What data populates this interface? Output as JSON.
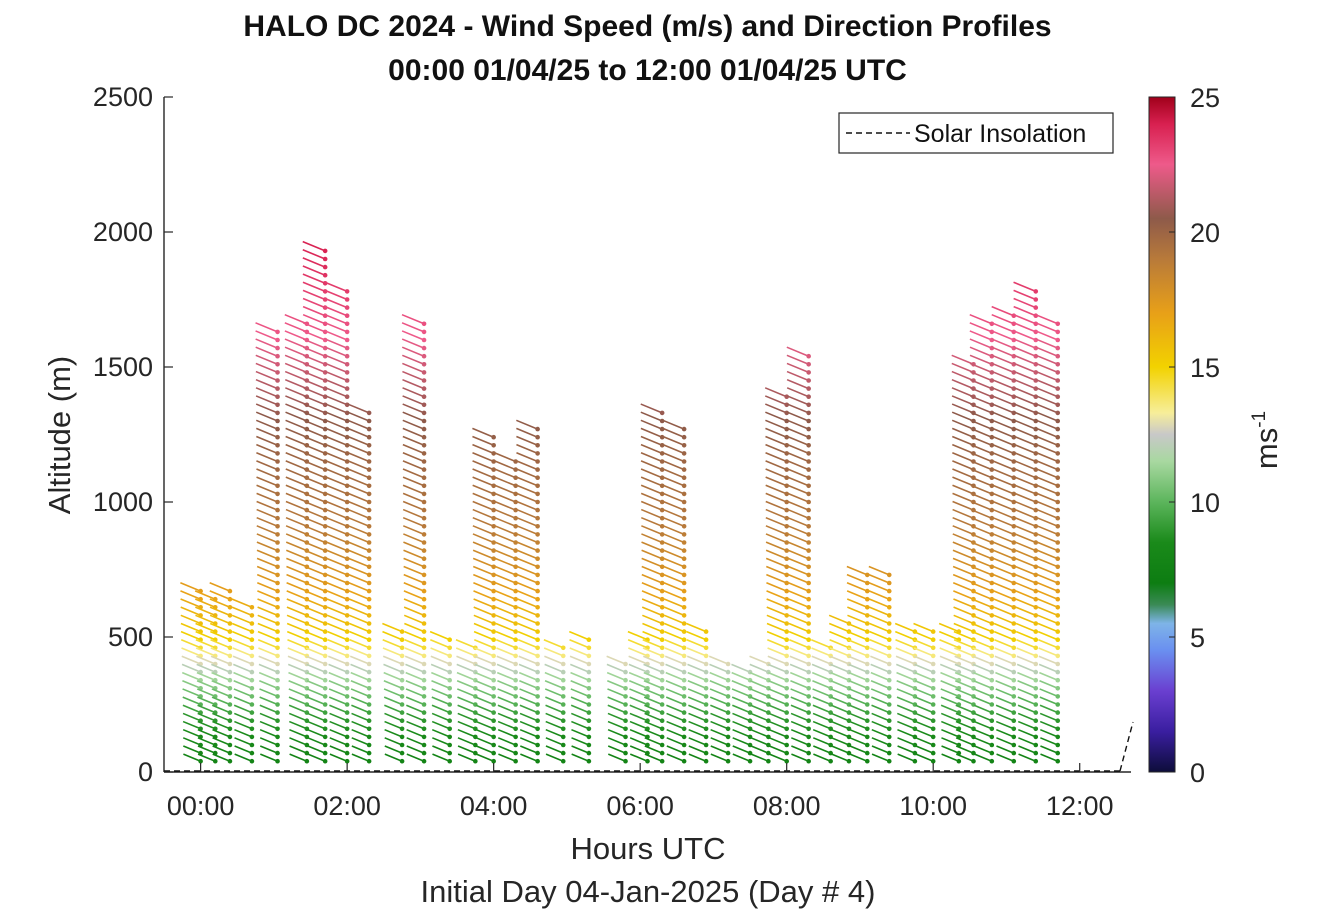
{
  "chart_data": {
    "type": "scatter",
    "subtype": "wind-barb profile (tick segments colored by speed)",
    "title": "HALO DC 2024 - Wind Speed (m/s) and Direction Profiles",
    "subtitle": "00:00 01/04/25 to 12:00 01/04/25  UTC",
    "xlabel": "Hours UTC",
    "xlabel2": "Initial Day 04-Jan-2025 (Day # 4)",
    "ylabel": "Altitude (m)",
    "x_ticks": [
      "00:00",
      "02:00",
      "04:00",
      "06:00",
      "08:00",
      "10:00",
      "12:00"
    ],
    "y_ticks": [
      "0",
      "500",
      "1000",
      "1500",
      "2000",
      "2500"
    ],
    "xlim": [
      -0.5,
      12.7
    ],
    "ylim": [
      0,
      2500
    ],
    "grid": false,
    "legend": {
      "entries": [
        "Solar Insolation"
      ],
      "placement": "top-right"
    },
    "colorbar": {
      "label": "ms",
      "label_superscript": "-1",
      "ticks": [
        "0",
        "5",
        "10",
        "15",
        "20",
        "25"
      ],
      "range": [
        0,
        25
      ],
      "stops": [
        {
          "v": 0,
          "c": "#0d0d3a"
        },
        {
          "v": 1.5,
          "c": "#3a1ea0"
        },
        {
          "v": 3,
          "c": "#6a3fd0"
        },
        {
          "v": 4.5,
          "c": "#6a8ff0"
        },
        {
          "v": 5.5,
          "c": "#7eb4e8"
        },
        {
          "v": 6.2,
          "c": "#3a8a55"
        },
        {
          "v": 7,
          "c": "#0d7d12"
        },
        {
          "v": 8.5,
          "c": "#1a8a1a"
        },
        {
          "v": 10,
          "c": "#5cb55c"
        },
        {
          "v": 11.5,
          "c": "#a8d8a0"
        },
        {
          "v": 12.5,
          "c": "#c8c8c8"
        },
        {
          "v": 13.3,
          "c": "#f7ee9a"
        },
        {
          "v": 15,
          "c": "#f2d200"
        },
        {
          "v": 17,
          "c": "#e8a018"
        },
        {
          "v": 19,
          "c": "#b87a3a"
        },
        {
          "v": 20.5,
          "c": "#8e5a4a"
        },
        {
          "v": 22.5,
          "c": "#ee5a8a"
        },
        {
          "v": 24,
          "c": "#d82050"
        },
        {
          "v": 25,
          "c": "#a0001a"
        }
      ]
    },
    "profiles": [
      {
        "t": 0.0,
        "ytop": 670
      },
      {
        "t": 0.2,
        "ytop": 650
      },
      {
        "t": 0.4,
        "ytop": 690
      },
      {
        "t": 0.7,
        "ytop": 610
      },
      {
        "t": 1.05,
        "ytop": 1640
      },
      {
        "t": 1.45,
        "ytop": 1660
      },
      {
        "t": 1.7,
        "ytop": 1930
      },
      {
        "t": 2.0,
        "ytop": 1780
      },
      {
        "t": 2.3,
        "ytop": 1330
      },
      {
        "t": 2.75,
        "ytop": 540
      },
      {
        "t": 3.05,
        "ytop": 1660
      },
      {
        "t": 3.4,
        "ytop": 500
      },
      {
        "t": 3.75,
        "ytop": 480
      },
      {
        "t": 4.0,
        "ytop": 1240
      },
      {
        "t": 4.3,
        "ytop": 1170
      },
      {
        "t": 4.6,
        "ytop": 1290
      },
      {
        "t": 4.95,
        "ytop": 460
      },
      {
        "t": 5.3,
        "ytop": 500
      },
      {
        "t": 5.8,
        "ytop": 400
      },
      {
        "t": 6.1,
        "ytop": 500
      },
      {
        "t": 6.3,
        "ytop": 1330
      },
      {
        "t": 6.6,
        "ytop": 1290
      },
      {
        "t": 6.9,
        "ytop": 540
      },
      {
        "t": 7.2,
        "ytop": 400
      },
      {
        "t": 7.5,
        "ytop": 380
      },
      {
        "t": 7.75,
        "ytop": 420
      },
      {
        "t": 8.0,
        "ytop": 1390
      },
      {
        "t": 8.3,
        "ytop": 1540
      },
      {
        "t": 8.6,
        "ytop": 460
      },
      {
        "t": 8.85,
        "ytop": 550
      },
      {
        "t": 9.1,
        "ytop": 730
      },
      {
        "t": 9.4,
        "ytop": 750
      },
      {
        "t": 9.75,
        "ytop": 540
      },
      {
        "t": 10.0,
        "ytop": 520
      },
      {
        "t": 10.35,
        "ytop": 520
      },
      {
        "t": 10.55,
        "ytop": 1530
      },
      {
        "t": 10.8,
        "ytop": 1680
      },
      {
        "t": 11.1,
        "ytop": 1710
      },
      {
        "t": 11.4,
        "ytop": 1780
      },
      {
        "t": 11.7,
        "ytop": 1660
      }
    ],
    "speed_by_altitude": [
      {
        "alt": 0,
        "speed": 7.5
      },
      {
        "alt": 200,
        "speed": 9
      },
      {
        "alt": 350,
        "speed": 11.5
      },
      {
        "alt": 480,
        "speed": 15
      },
      {
        "alt": 650,
        "speed": 17
      },
      {
        "alt": 900,
        "speed": 19
      },
      {
        "alt": 1300,
        "speed": 20.5
      },
      {
        "alt": 1600,
        "speed": 22.5
      },
      {
        "alt": 1950,
        "speed": 24
      }
    ]
  }
}
